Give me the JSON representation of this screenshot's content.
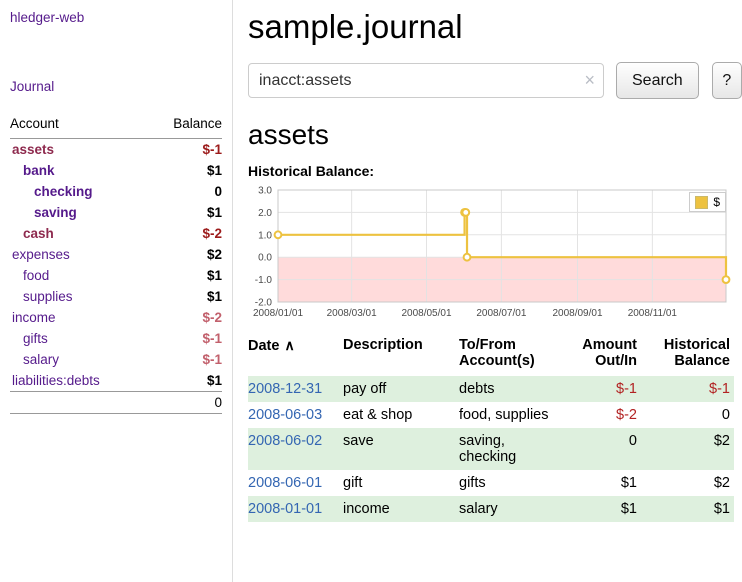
{
  "colors": {
    "link": "#551a8b",
    "maroon": "#8e2a4e",
    "neg_strong": "#9c1b1b",
    "neg_soft": "#c2606c",
    "neg_table": "#b22222",
    "date_link": "#3466b2",
    "row_green": "#def0de",
    "chart_line": "#edc240",
    "chart_negative_region": "#ffdbdb",
    "sidebar_border": "#dddddd"
  },
  "sidebar": {
    "app_title": "hledger-web",
    "journal_link": "Journal",
    "accounts": {
      "header_account": "Account",
      "header_balance": "Balance",
      "rows": [
        {
          "name": "assets",
          "indent": 0,
          "bold": true,
          "name_style": "maroon",
          "balance": "$-1",
          "balance_style": "neg-strong"
        },
        {
          "name": "bank",
          "indent": 1,
          "bold": true,
          "name_style": "purple",
          "balance": "$1",
          "balance_style": "pos"
        },
        {
          "name": "checking",
          "indent": 2,
          "bold": true,
          "name_style": "purple",
          "balance": "0",
          "balance_style": "pos"
        },
        {
          "name": "saving",
          "indent": 2,
          "bold": true,
          "name_style": "purple",
          "balance": "$1",
          "balance_style": "pos"
        },
        {
          "name": "cash",
          "indent": 1,
          "bold": true,
          "name_style": "maroon",
          "balance": "$-2",
          "balance_style": "neg-strong"
        },
        {
          "name": "expenses",
          "indent": 0,
          "bold": false,
          "name_style": "purple",
          "balance": "$2",
          "balance_style": "pos"
        },
        {
          "name": "food",
          "indent": 1,
          "bold": false,
          "name_style": "purple",
          "balance": "$1",
          "balance_style": "pos"
        },
        {
          "name": "supplies",
          "indent": 1,
          "bold": false,
          "name_style": "purple",
          "balance": "$1",
          "balance_style": "pos"
        },
        {
          "name": "income",
          "indent": 0,
          "bold": false,
          "name_style": "purple",
          "balance": "$-2",
          "balance_style": "neg-soft"
        },
        {
          "name": "gifts",
          "indent": 1,
          "bold": false,
          "name_style": "purple",
          "balance": "$-1",
          "balance_style": "neg-soft"
        },
        {
          "name": "salary",
          "indent": 1,
          "bold": false,
          "name_style": "purple",
          "balance": "$-1",
          "balance_style": "neg-soft"
        },
        {
          "name": "liabilities:debts",
          "indent": 0,
          "bold": false,
          "name_style": "purple",
          "balance": "$1",
          "balance_style": "pos"
        }
      ],
      "total": "0"
    }
  },
  "main": {
    "page_title": "sample.journal",
    "search": {
      "value": "inacct:assets",
      "clear_icon": "×",
      "button_label": "Search",
      "help_label": "?"
    },
    "account_heading": "assets",
    "chart_label": "Historical Balance:"
  },
  "chart_data": {
    "type": "line",
    "title": "Historical Balance",
    "style": "step-after",
    "grid": true,
    "legend_position": "top-right",
    "x_ticks": [
      "2008/01/01",
      "2008/03/01",
      "2008/05/01",
      "2008/07/01",
      "2008/09/01",
      "2008/11/01"
    ],
    "y_ticks": [
      "3.0",
      "2.0",
      "1.0",
      "0.0",
      "-1.0",
      "-2.0"
    ],
    "ylim": [
      -2.0,
      3.0
    ],
    "x_range": [
      "2008-01-01",
      "2008-12-31"
    ],
    "series": [
      {
        "name": "$",
        "points": [
          [
            "2008-01-01",
            1
          ],
          [
            "2008-06-01",
            2
          ],
          [
            "2008-06-02",
            2
          ],
          [
            "2008-06-03",
            0
          ],
          [
            "2008-12-31",
            -1
          ]
        ]
      }
    ]
  },
  "register": {
    "headers": {
      "date": "Date",
      "sort_icon": "∧",
      "description": "Description",
      "accounts": "To/From Account(s)",
      "amount": "Amount Out/In",
      "balance": "Historical Balance"
    },
    "rows": [
      {
        "date": "2008-12-31",
        "description": "pay off",
        "accounts": "debts",
        "amount": "$-1",
        "balance": "$-1"
      },
      {
        "date": "2008-06-03",
        "description": "eat & shop",
        "accounts": "food, supplies",
        "amount": "$-2",
        "balance": "0"
      },
      {
        "date": "2008-06-02",
        "description": "save",
        "accounts": "saving, checking",
        "amount": "0",
        "balance": "$2"
      },
      {
        "date": "2008-06-01",
        "description": "gift",
        "accounts": "gifts",
        "amount": "$1",
        "balance": "$2"
      },
      {
        "date": "2008-01-01",
        "description": "income",
        "accounts": "salary",
        "amount": "$1",
        "balance": "$1"
      }
    ]
  }
}
